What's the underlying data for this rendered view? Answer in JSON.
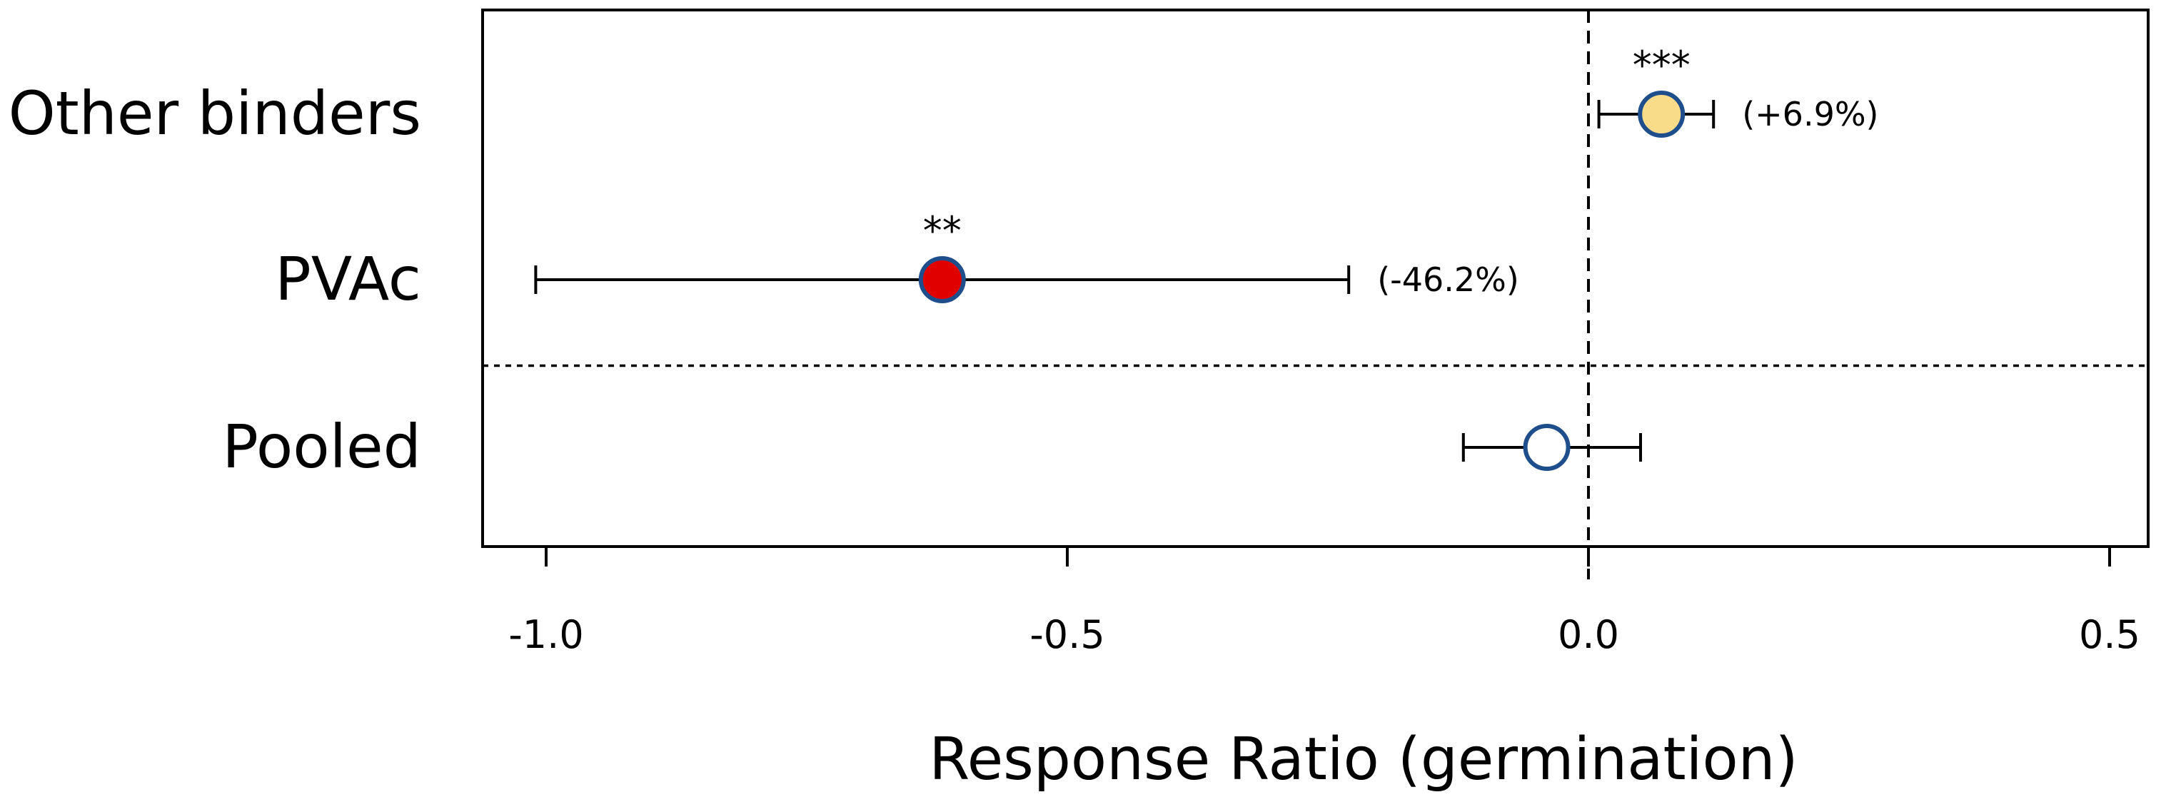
{
  "chart_data": {
    "type": "scatter",
    "subtype": "forest-plot",
    "xlabel": "Response Ratio (germination)",
    "xlim": [
      -1.12,
      0.55
    ],
    "xticks": [
      -1.0,
      -0.5,
      0.0,
      0.5
    ],
    "xtick_labels": [
      "-1.0",
      "-0.5",
      "0.0",
      "0.5"
    ],
    "reference_line": {
      "x": 0.0,
      "style": "dashed"
    },
    "group_separator": {
      "between": [
        "PVAc",
        "Pooled"
      ],
      "style": "dotted"
    },
    "rows": [
      {
        "label": "Other binders",
        "estimate": 0.07,
        "ci_low": 0.01,
        "ci_high": 0.12,
        "significance": "***",
        "annotation": "(+6.9%)",
        "fill": "#f9dc8a",
        "stroke": "#1f4e8c"
      },
      {
        "label": "PVAc",
        "estimate": -0.62,
        "ci_low": -1.01,
        "ci_high": -0.23,
        "significance": "**",
        "annotation": "(-46.2%)",
        "fill": "#e00000",
        "stroke": "#1f4e8c"
      },
      {
        "label": "Pooled",
        "estimate": -0.04,
        "ci_low": -0.12,
        "ci_high": 0.05,
        "significance": "",
        "annotation": "",
        "fill": "#ffffff",
        "stroke": "#1f4e8c"
      }
    ]
  }
}
